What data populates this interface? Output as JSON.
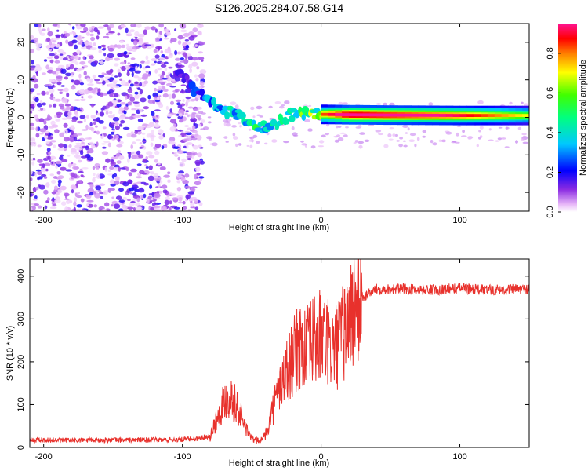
{
  "title": "S126.2025.284.07.58.G14",
  "colors": {
    "snr_line": "#e8312c",
    "axis": "#000000",
    "scatter_low": "#8a2be2",
    "track_core": "#e11a1a"
  },
  "chart_data": [
    {
      "type": "heatmap",
      "name": "spectrogram",
      "xlabel": "Height of straight line (km)",
      "ylabel": "Frequency (Hz)",
      "xlim": [
        -210,
        150
      ],
      "ylim": [
        -25,
        25
      ],
      "xticks": [
        -200,
        -100,
        0,
        100
      ],
      "yticks": [
        -20,
        -10,
        0,
        10,
        20
      ],
      "colorbar": {
        "label": "Normalized spectral amplitude",
        "range": [
          0,
          0.95
        ],
        "ticks": [
          0.0,
          0.2,
          0.4,
          0.6,
          0.8
        ],
        "tick_labels": [
          "0.0",
          "0.2",
          "0.4",
          "0.6",
          "0.8"
        ],
        "colormap": "rainbow (magenta → blue → cyan → green → yellow → red → pink)"
      },
      "track": {
        "description": "Dominant spectral ridge",
        "x": [
          -100,
          -90,
          -80,
          -70,
          -60,
          -50,
          -40,
          -30,
          -20,
          -10,
          0,
          20,
          50,
          100,
          150
        ],
        "y": [
          11,
          7,
          4,
          2,
          0.5,
          -1.5,
          -3,
          -1,
          1,
          1,
          0.8,
          0.7,
          0.6,
          0.5,
          0.5
        ],
        "amplitude": [
          0.2,
          0.25,
          0.35,
          0.4,
          0.45,
          0.5,
          0.55,
          0.5,
          0.6,
          0.65,
          0.7,
          0.95,
          0.9,
          0.8,
          0.6
        ]
      },
      "noise_region": {
        "x_range": [
          -210,
          -100
        ],
        "freq_range": [
          -25,
          25
        ],
        "amplitude_range": [
          0.02,
          0.2
        ]
      }
    },
    {
      "type": "line",
      "name": "snr",
      "xlabel": "Height of straight line (km)",
      "ylabel": "SNR (10 * v/v)",
      "xlim": [
        -210,
        150
      ],
      "ylim": [
        0,
        440
      ],
      "xticks": [
        -200,
        -100,
        0,
        100
      ],
      "yticks": [
        0,
        100,
        200,
        300,
        400
      ],
      "series": [
        {
          "name": "SNR",
          "x": [
            -210,
            -180,
            -150,
            -120,
            -100,
            -90,
            -80,
            -75,
            -70,
            -65,
            -60,
            -55,
            -50,
            -45,
            -40,
            -35,
            -30,
            -25,
            -20,
            -15,
            -10,
            -5,
            0,
            5,
            10,
            15,
            20,
            25,
            30,
            40,
            60,
            80,
            100,
            120,
            150
          ],
          "y": [
            15,
            14,
            15,
            15,
            16,
            18,
            25,
            70,
            110,
            120,
            90,
            50,
            20,
            15,
            30,
            90,
            140,
            180,
            210,
            240,
            230,
            250,
            260,
            240,
            230,
            260,
            300,
            330,
            350,
            370,
            370,
            368,
            372,
            368,
            370
          ]
        }
      ]
    }
  ]
}
